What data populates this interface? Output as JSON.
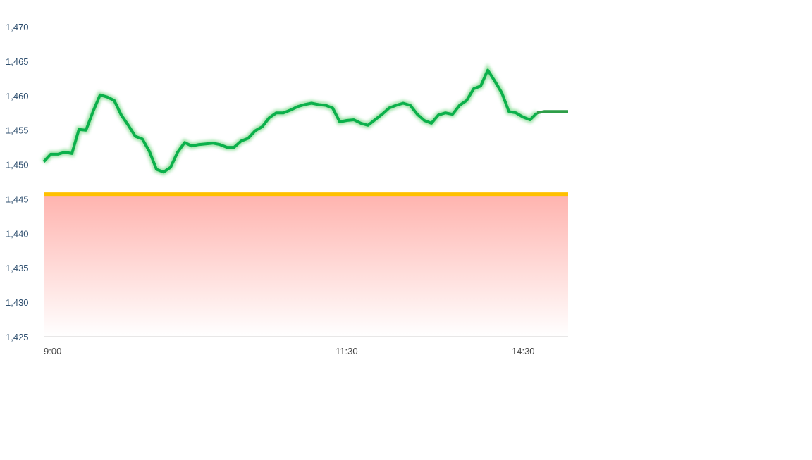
{
  "chart_data": {
    "type": "line",
    "title": "",
    "xlabel": "",
    "ylabel": "",
    "ylim": [
      1425,
      1470
    ],
    "y_ticks": [
      1425,
      1430,
      1435,
      1440,
      1445,
      1450,
      1455,
      1460,
      1465,
      1470
    ],
    "y_tick_labels": [
      "1,425",
      "1,430",
      "1,435",
      "1,440",
      "1,445",
      "1,450",
      "1,455",
      "1,460",
      "1,465",
      "1,470"
    ],
    "x_ticks": [
      {
        "index": 0,
        "label": "9:00"
      },
      {
        "index": 43,
        "label": "11:30"
      },
      {
        "index": 68,
        "label": "14:30"
      }
    ],
    "grid": false,
    "baseline": 1445.7,
    "values": [
      1450.4,
      1451.5,
      1451.5,
      1451.8,
      1451.6,
      1455.1,
      1455.0,
      1457.7,
      1460.1,
      1459.8,
      1459.3,
      1457.2,
      1455.7,
      1454.1,
      1453.7,
      1451.9,
      1449.3,
      1448.9,
      1449.6,
      1451.8,
      1453.2,
      1452.7,
      1452.9,
      1453.0,
      1453.1,
      1452.9,
      1452.5,
      1452.5,
      1453.4,
      1453.8,
      1454.9,
      1455.5,
      1456.8,
      1457.5,
      1457.5,
      1457.9,
      1458.4,
      1458.7,
      1458.9,
      1458.7,
      1458.6,
      1458.2,
      1456.2,
      1456.4,
      1456.5,
      1456.0,
      1455.7,
      1456.5,
      1457.3,
      1458.2,
      1458.6,
      1458.9,
      1458.6,
      1457.3,
      1456.4,
      1456.0,
      1457.2,
      1457.5,
      1457.3,
      1458.6,
      1459.3,
      1461.0,
      1461.4,
      1463.7,
      1462.1,
      1460.4,
      1457.7,
      1457.5,
      1456.9,
      1456.5,
      1457.5,
      1457.7,
      1457.7,
      1457.7,
      1457.7
    ],
    "extension_from_index": 70,
    "colors": {
      "line": "#0bb04b",
      "line_glow": "#9fe3a8",
      "extension": "#2e9e48",
      "baseline": "#ffc000",
      "fill_top": "#ffb3ae",
      "fill_bottom": "#ffffff",
      "axis": "#d0d0d0"
    }
  }
}
